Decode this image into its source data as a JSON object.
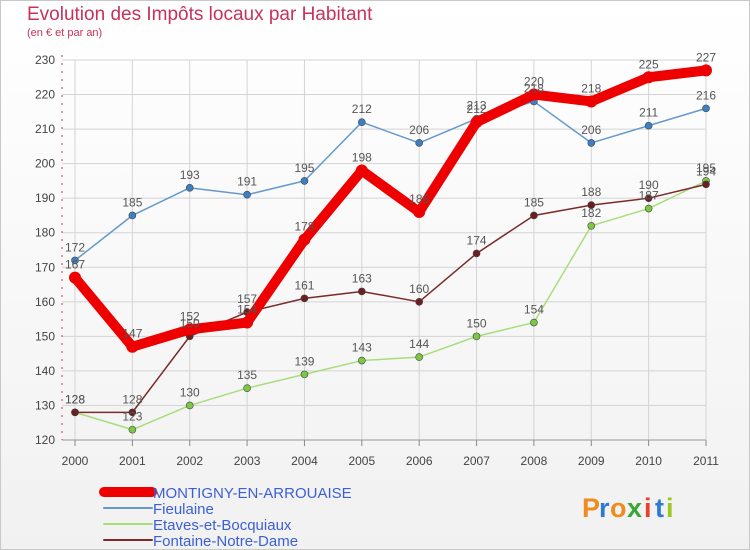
{
  "title": "Evolution des Impôts locaux par Habitant",
  "subtitle": "(en € et par an)",
  "brand": {
    "letters": [
      "P",
      "r",
      "o",
      "x",
      "i",
      "t",
      "i"
    ],
    "colors": [
      "#f08c1e",
      "#2c7ad6",
      "#f08c1e",
      "#3aa636",
      "#e8402a",
      "#2c7ad6",
      "#9ac81e"
    ]
  },
  "chart_data": {
    "type": "line",
    "title": "Evolution des Impôts locaux par Habitant",
    "subtitle": "(en € et par an)",
    "x": [
      "2000",
      "2001",
      "2002",
      "2003",
      "2004",
      "2005",
      "2006",
      "2007",
      "2008",
      "2009",
      "2010",
      "2011"
    ],
    "ylim": [
      120,
      230
    ],
    "yticks": [
      120,
      130,
      140,
      150,
      160,
      170,
      180,
      190,
      200,
      210,
      220,
      230
    ],
    "grid": true,
    "legend_position": "bottom-left",
    "series": [
      {
        "name": "Fieulaine",
        "color": "#6699cc",
        "marker": "#3d7fc4",
        "values": [
          172,
          185,
          193,
          191,
          195,
          212,
          206,
          213,
          218,
          206,
          211,
          216
        ],
        "labels": [
          "172",
          "185",
          "193",
          "191",
          "195",
          "212",
          "206",
          "213",
          "218",
          "206",
          "211",
          "216"
        ]
      },
      {
        "name": "Etaves-et-Bocquiaux",
        "color": "#a8dd7c",
        "marker": "#7ac843",
        "values": [
          128,
          123,
          130,
          135,
          139,
          143,
          144,
          150,
          154,
          182,
          187,
          195
        ],
        "labels": [
          "128",
          "123",
          "130",
          "135",
          "139",
          "143",
          "144",
          "150",
          "154",
          "182",
          "187",
          "195"
        ]
      },
      {
        "name": "Fontaine-Notre-Dame",
        "color": "#7a2a2a",
        "marker": "#6b1f1f",
        "values": [
          128,
          128,
          150,
          157,
          161,
          163,
          160,
          174,
          185,
          188,
          190,
          194
        ],
        "labels": [
          "128",
          "128",
          "150",
          "157",
          "161",
          "163",
          "160",
          "174",
          "185",
          "188",
          "190",
          "194"
        ]
      },
      {
        "name": "MONTIGNY-EN-ARROUAISE",
        "color": "#ee0000",
        "marker": "#ee0000",
        "bold": true,
        "values": [
          167,
          147,
          152,
          154,
          178,
          198,
          186,
          212,
          220,
          218,
          225,
          227
        ],
        "labels": [
          "167",
          "147",
          "152",
          "154",
          "178",
          "198",
          "186",
          "212",
          "220",
          "218",
          "225",
          "227"
        ]
      }
    ],
    "legend": [
      {
        "name": "MONTIGNY-EN-ARROUAISE",
        "color": "#ee0000",
        "bold": true
      },
      {
        "name": "Fieulaine",
        "color": "#6699cc"
      },
      {
        "name": "Etaves-et-Bocquiaux",
        "color": "#a8dd7c"
      },
      {
        "name": "Fontaine-Notre-Dame",
        "color": "#7a2a2a"
      }
    ]
  }
}
